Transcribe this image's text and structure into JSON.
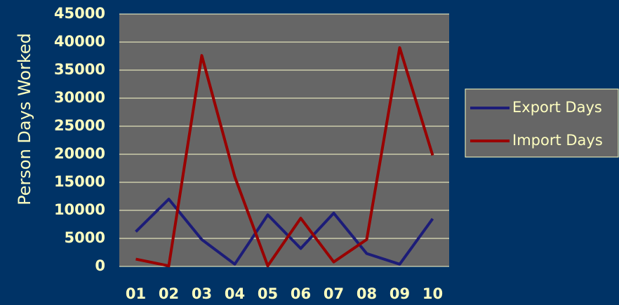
{
  "chart_data": {
    "type": "line",
    "y_label": "Person Days Worked",
    "categories": [
      "01",
      "02",
      "03",
      "04",
      "05",
      "06",
      "07",
      "08",
      "09",
      "10"
    ],
    "series": [
      {
        "name": "Export Days",
        "color": "#1c1c78",
        "values": [
          6200,
          12000,
          4800,
          400,
          9200,
          3200,
          9500,
          2300,
          400,
          8500
        ]
      },
      {
        "name": "Import Days",
        "color": "#990000",
        "values": [
          1300,
          100,
          37600,
          16000,
          100,
          8600,
          800,
          4800,
          39000,
          19800
        ]
      }
    ],
    "ylim": [
      0,
      45000
    ],
    "yticks": [
      0,
      5000,
      10000,
      15000,
      20000,
      25000,
      30000,
      35000,
      40000,
      45000
    ],
    "grid": true,
    "legend": "right"
  }
}
